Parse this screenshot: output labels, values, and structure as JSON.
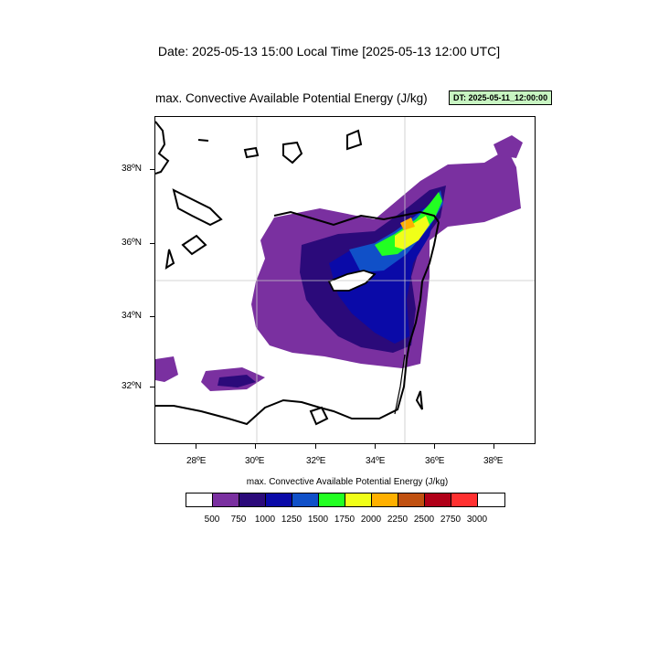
{
  "header": {
    "date_line": "Date: 2025-05-13  15:00 Local Time [2025-05-13  12:00 UTC]",
    "map_title": "max. Convective Available Potential Energy   (J/kg)",
    "dt_badge": "DT: 2025-05-11_12:00:00"
  },
  "map": {
    "lon_labels": [
      "28ºE",
      "30ºE",
      "32ºE",
      "34ºE",
      "36ºE",
      "38ºE"
    ],
    "lat_labels": [
      "38ºN",
      "36ºN",
      "34ºN",
      "32ºN"
    ],
    "gridlines": {
      "lon": [
        "30ºE",
        "35ºE"
      ],
      "lat": [
        "35ºN"
      ]
    }
  },
  "colorbar": {
    "title": "max. Convective Available Potential Energy  (J/kg)",
    "colors": [
      "#ffffff",
      "#7a30a0",
      "#2b0a7a",
      "#0a0aa8",
      "#1050c8",
      "#22ff22",
      "#f0ff18",
      "#ffb000",
      "#c05010",
      "#b00018",
      "#ff3030",
      "#ffffff"
    ],
    "labels": [
      "500",
      "750",
      "1000",
      "1250",
      "1500",
      "1750",
      "2000",
      "2250",
      "2500",
      "2750",
      "3000"
    ]
  }
}
